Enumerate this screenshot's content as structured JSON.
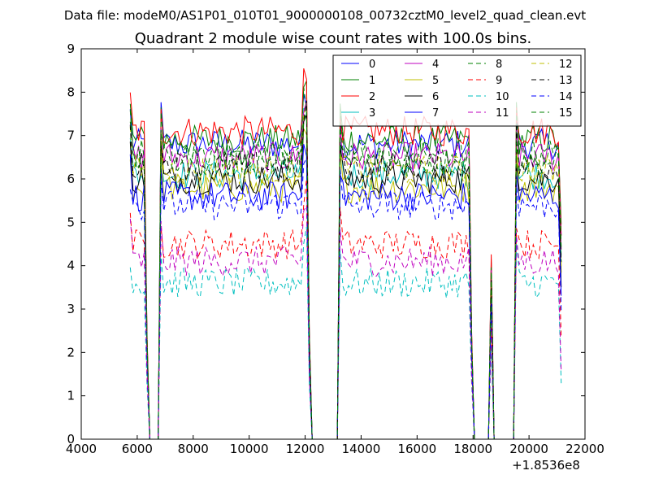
{
  "header": {
    "suptitle": "Data file: modeM0/AS1P01_010T01_9000000108_00732cztM0_level2_quad_clean.evt"
  },
  "chart_data": {
    "type": "line",
    "title": "Quadrant 2 module wise count rates with 100.0s bins.",
    "xlabel": "",
    "ylabel": "",
    "x_offset_label": "+1.8536e8",
    "xlim": [
      4000,
      22000
    ],
    "ylim": [
      0,
      9
    ],
    "xticks": [
      4000,
      6000,
      8000,
      10000,
      12000,
      14000,
      16000,
      18000,
      20000,
      22000
    ],
    "yticks": [
      0,
      1,
      2,
      3,
      4,
      5,
      6,
      7,
      8,
      9
    ],
    "legend_position": "top-right",
    "x": [
      5750,
      5850,
      5950,
      6050,
      6150,
      6250,
      6350,
      6450,
      6550,
      6650,
      6750,
      6850,
      6950,
      7050,
      7150,
      7250,
      7350,
      7450,
      7550,
      7650,
      7750,
      7850,
      7950,
      8050,
      8150,
      8250,
      8350,
      8450,
      8550,
      8650,
      8750,
      8850,
      8950,
      9050,
      9150,
      9250,
      9350,
      9450,
      9550,
      9650,
      9750,
      9850,
      9950,
      10050,
      10150,
      10250,
      10350,
      10450,
      10550,
      10650,
      10750,
      10850,
      10950,
      11050,
      11150,
      11250,
      11350,
      11450,
      11550,
      11650,
      11750,
      11850,
      11950,
      12050,
      12150,
      12250,
      12350,
      12450,
      12550,
      12650,
      12750,
      12850,
      12950,
      13050,
      13150,
      13250,
      13350,
      13450,
      13550,
      13650,
      13750,
      13850,
      13950,
      14050,
      14150,
      14250,
      14350,
      14450,
      14550,
      14650,
      14750,
      14850,
      14950,
      15050,
      15150,
      15250,
      15350,
      15450,
      15550,
      15650,
      15750,
      15850,
      15950,
      16050,
      16150,
      16250,
      16350,
      16450,
      16550,
      16650,
      16750,
      16850,
      16950,
      17050,
      17150,
      17250,
      17350,
      17450,
      17550,
      17650,
      17750,
      17850,
      17950,
      18050,
      18150,
      18250,
      18350,
      18450,
      18550,
      18650,
      18750,
      18850,
      18950,
      19050,
      19150,
      19250,
      19350,
      19450,
      19550,
      19650,
      19750,
      19850,
      19950,
      20050,
      20150,
      20250,
      20350,
      20450,
      20550,
      20650,
      20750,
      20850,
      20950,
      21050,
      21150
    ],
    "series": [
      {
        "name": "0",
        "color": "#0000ff",
        "dash": "solid",
        "base": 6.8,
        "range": [
          5750,
          21150
        ]
      },
      {
        "name": "1",
        "color": "#008000",
        "dash": "solid",
        "base": 6.9,
        "range": [
          5750,
          21150
        ]
      },
      {
        "name": "2",
        "color": "#ff0000",
        "dash": "solid",
        "base": 7.1,
        "range": [
          5750,
          21150
        ]
      },
      {
        "name": "3",
        "color": "#00bfbf",
        "dash": "solid",
        "base": 6.1,
        "range": [
          5750,
          21150
        ]
      },
      {
        "name": "4",
        "color": "#bf00bf",
        "dash": "solid",
        "base": 6.5,
        "range": [
          5750,
          21150
        ]
      },
      {
        "name": "5",
        "color": "#bfbf00",
        "dash": "solid",
        "base": 5.8,
        "range": [
          5750,
          21150
        ]
      },
      {
        "name": "6",
        "color": "#000000",
        "dash": "solid",
        "base": 6.0,
        "range": [
          5750,
          21150
        ]
      },
      {
        "name": "7",
        "color": "#0000ff",
        "dash": "solid",
        "base": 5.6,
        "range": [
          5750,
          21150
        ]
      },
      {
        "name": "8",
        "color": "#008000",
        "dash": "dashed",
        "base": 6.6,
        "range": [
          5750,
          21150
        ]
      },
      {
        "name": "9",
        "color": "#ff0000",
        "dash": "dashed",
        "base": 4.5,
        "range": [
          5750,
          21150
        ]
      },
      {
        "name": "10",
        "color": "#00bfbf",
        "dash": "dashed",
        "base": 3.6,
        "range": [
          5750,
          21150
        ]
      },
      {
        "name": "11",
        "color": "#bf00bf",
        "dash": "dashed",
        "base": 4.1,
        "range": [
          5750,
          21150
        ]
      },
      {
        "name": "12",
        "color": "#bfbf00",
        "dash": "dashed",
        "base": 6.2,
        "range": [
          5750,
          21150
        ]
      },
      {
        "name": "13",
        "color": "#000000",
        "dash": "dashed",
        "base": 6.3,
        "range": [
          5750,
          21150
        ]
      },
      {
        "name": "14",
        "color": "#0000ff",
        "dash": "dashed",
        "base": 5.4,
        "range": [
          5750,
          21150
        ]
      },
      {
        "name": "15",
        "color": "#008000",
        "dash": "dashed",
        "base": 6.4,
        "range": [
          5750,
          21150
        ]
      }
    ],
    "gaps": [
      [
        6450,
        6750
      ],
      [
        12250,
        13150
      ],
      [
        18050,
        18550
      ],
      [
        18750,
        19450
      ]
    ],
    "spike": {
      "x": 18650,
      "values_scale": 0.6
    }
  }
}
